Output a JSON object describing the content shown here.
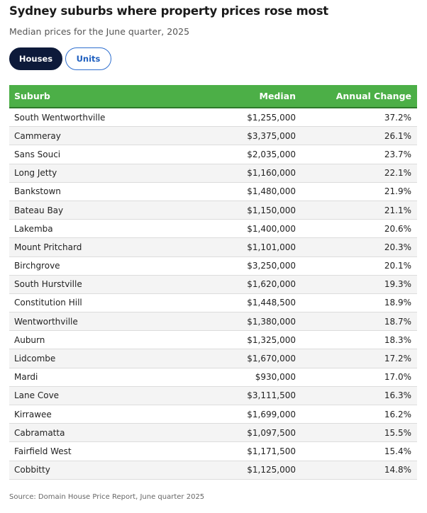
{
  "title": "Sydney suburbs where property prices rose most",
  "subtitle": "Median prices for the June quarter, 2025",
  "tabs": [
    {
      "label": "Houses",
      "active": true
    },
    {
      "label": "Units",
      "active": false
    }
  ],
  "colors": {
    "header_bg": "#4caf47",
    "active_tab_bg": "#0d1a3a",
    "inactive_tab_text": "#1f5fbf"
  },
  "chart_data": {
    "type": "table",
    "columns": [
      "Suburb",
      "Median",
      "Annual Change"
    ],
    "rows": [
      [
        "South Wentworthville",
        "$1,255,000",
        "37.2%"
      ],
      [
        "Cammeray",
        "$3,375,000",
        "26.1%"
      ],
      [
        "Sans Souci",
        "$2,035,000",
        "23.7%"
      ],
      [
        "Long Jetty",
        "$1,160,000",
        "22.1%"
      ],
      [
        "Bankstown",
        "$1,480,000",
        "21.9%"
      ],
      [
        "Bateau Bay",
        "$1,150,000",
        "21.1%"
      ],
      [
        "Lakemba",
        "$1,400,000",
        "20.6%"
      ],
      [
        "Mount Pritchard",
        "$1,101,000",
        "20.3%"
      ],
      [
        "Birchgrove",
        "$3,250,000",
        "20.1%"
      ],
      [
        "South Hurstville",
        "$1,620,000",
        "19.3%"
      ],
      [
        "Constitution Hill",
        "$1,448,500",
        "18.9%"
      ],
      [
        "Wentworthville",
        "$1,380,000",
        "18.7%"
      ],
      [
        "Auburn",
        "$1,325,000",
        "18.3%"
      ],
      [
        "Lidcombe",
        "$1,670,000",
        "17.2%"
      ],
      [
        "Mardi",
        "$930,000",
        "17.0%"
      ],
      [
        "Lane Cove",
        "$3,111,500",
        "16.3%"
      ],
      [
        "Kirrawee",
        "$1,699,000",
        "16.2%"
      ],
      [
        "Cabramatta",
        "$1,097,500",
        "15.5%"
      ],
      [
        "Fairfield West",
        "$1,171,500",
        "15.4%"
      ],
      [
        "Cobbitty",
        "$1,125,000",
        "14.8%"
      ]
    ]
  },
  "source": "Source: Domain House Price Report, June quarter 2025"
}
